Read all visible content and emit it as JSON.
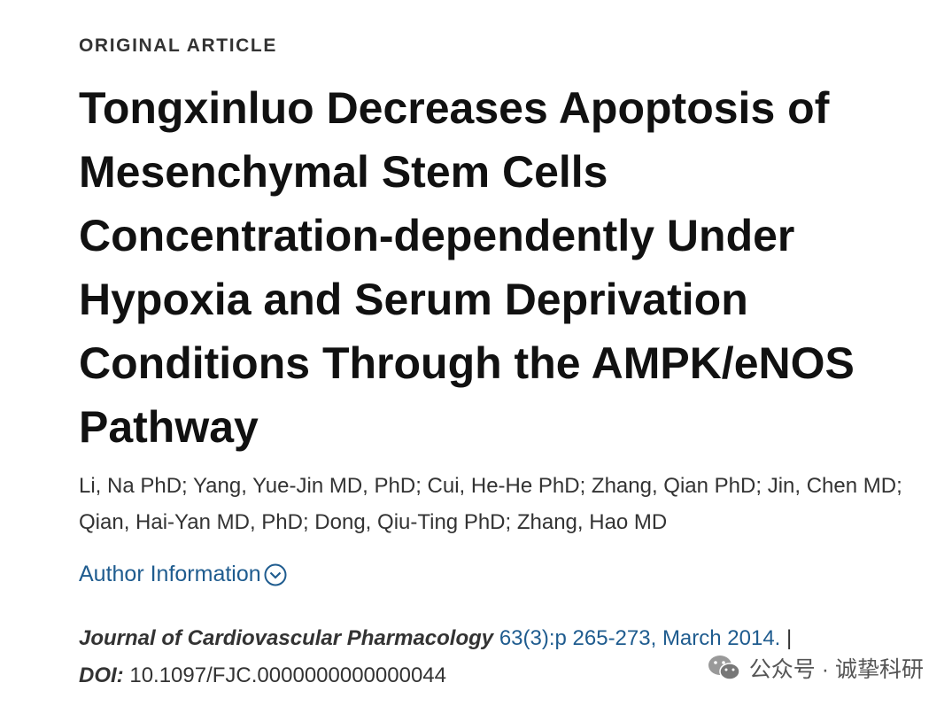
{
  "article_type": "ORIGINAL ARTICLE",
  "title": "Tongxinluo Decreases Apoptosis of Mesenchymal Stem Cells Concentration-dependently Under Hypoxia and Serum Deprivation Conditions Through the AMPK/eNOS Pathway",
  "authors": "Li, Na PhD; Yang, Yue-Jin MD, PhD; Cui, He-He PhD; Zhang, Qian PhD; Jin, Chen MD; Qian, Hai-Yan MD, PhD; Dong, Qiu-Ting PhD; Zhang, Hao MD",
  "author_information": "Author Information",
  "citation": {
    "journal": "Journal of Cardiovascular Pharmacology",
    "details": "63(3):p 265-273, March 2014.",
    "separator": "|",
    "doi_label": "DOI:",
    "doi": "10.1097/FJC.0000000000000044"
  },
  "watermark": "公众号 · 诚挚科研"
}
